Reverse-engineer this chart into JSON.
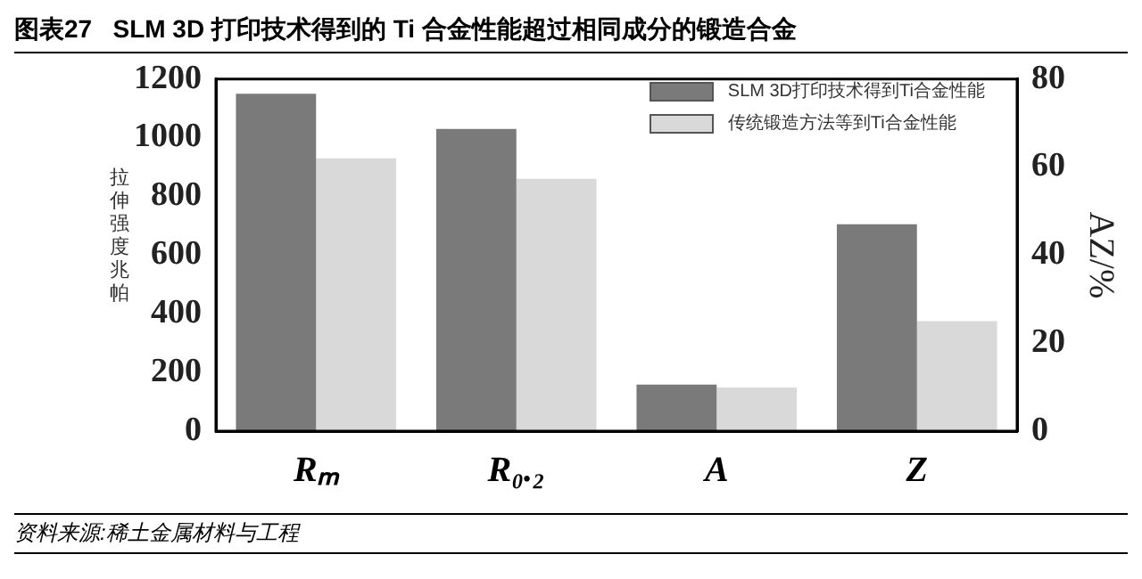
{
  "chart_data": {
    "type": "bar",
    "title": "图表27   SLM 3D 打印技术得到的 Ti 合金性能超过相同成分的锻造合金",
    "categories": [
      "Rₘ",
      "R₀.₂",
      "A",
      "Z"
    ],
    "series": [
      {
        "name": "SLM 3D打印技术得到Ti合金性能",
        "color": "#7a7a7a",
        "values": [
          1150,
          1030,
          null,
          null
        ]
      },
      {
        "name": "传统锻造方法等到Ti合金性能",
        "color": "#d9d9d9",
        "values": [
          930,
          860,
          null,
          null
        ]
      },
      {
        "color": "#7a7a7a",
        "axis": "y2",
        "values": [
          null,
          null,
          10.6,
          47
        ]
      },
      {
        "color": "#d9d9d9",
        "axis": "y2",
        "values": [
          null,
          null,
          9.9,
          25
        ]
      }
    ],
    "ylabel": "拉伸强度兆帕",
    "y2label": "AZ/%",
    "ylim": [
      0,
      1200
    ],
    "yticks": [
      0,
      200,
      400,
      600,
      800,
      1000,
      1200
    ],
    "y2lim": [
      0,
      80
    ],
    "y2ticks": [
      0,
      20,
      40,
      60,
      80
    ],
    "legend": "top right",
    "grid": false,
    "annotations": [
      "资料来源:稀土金属材料与工程"
    ]
  }
}
